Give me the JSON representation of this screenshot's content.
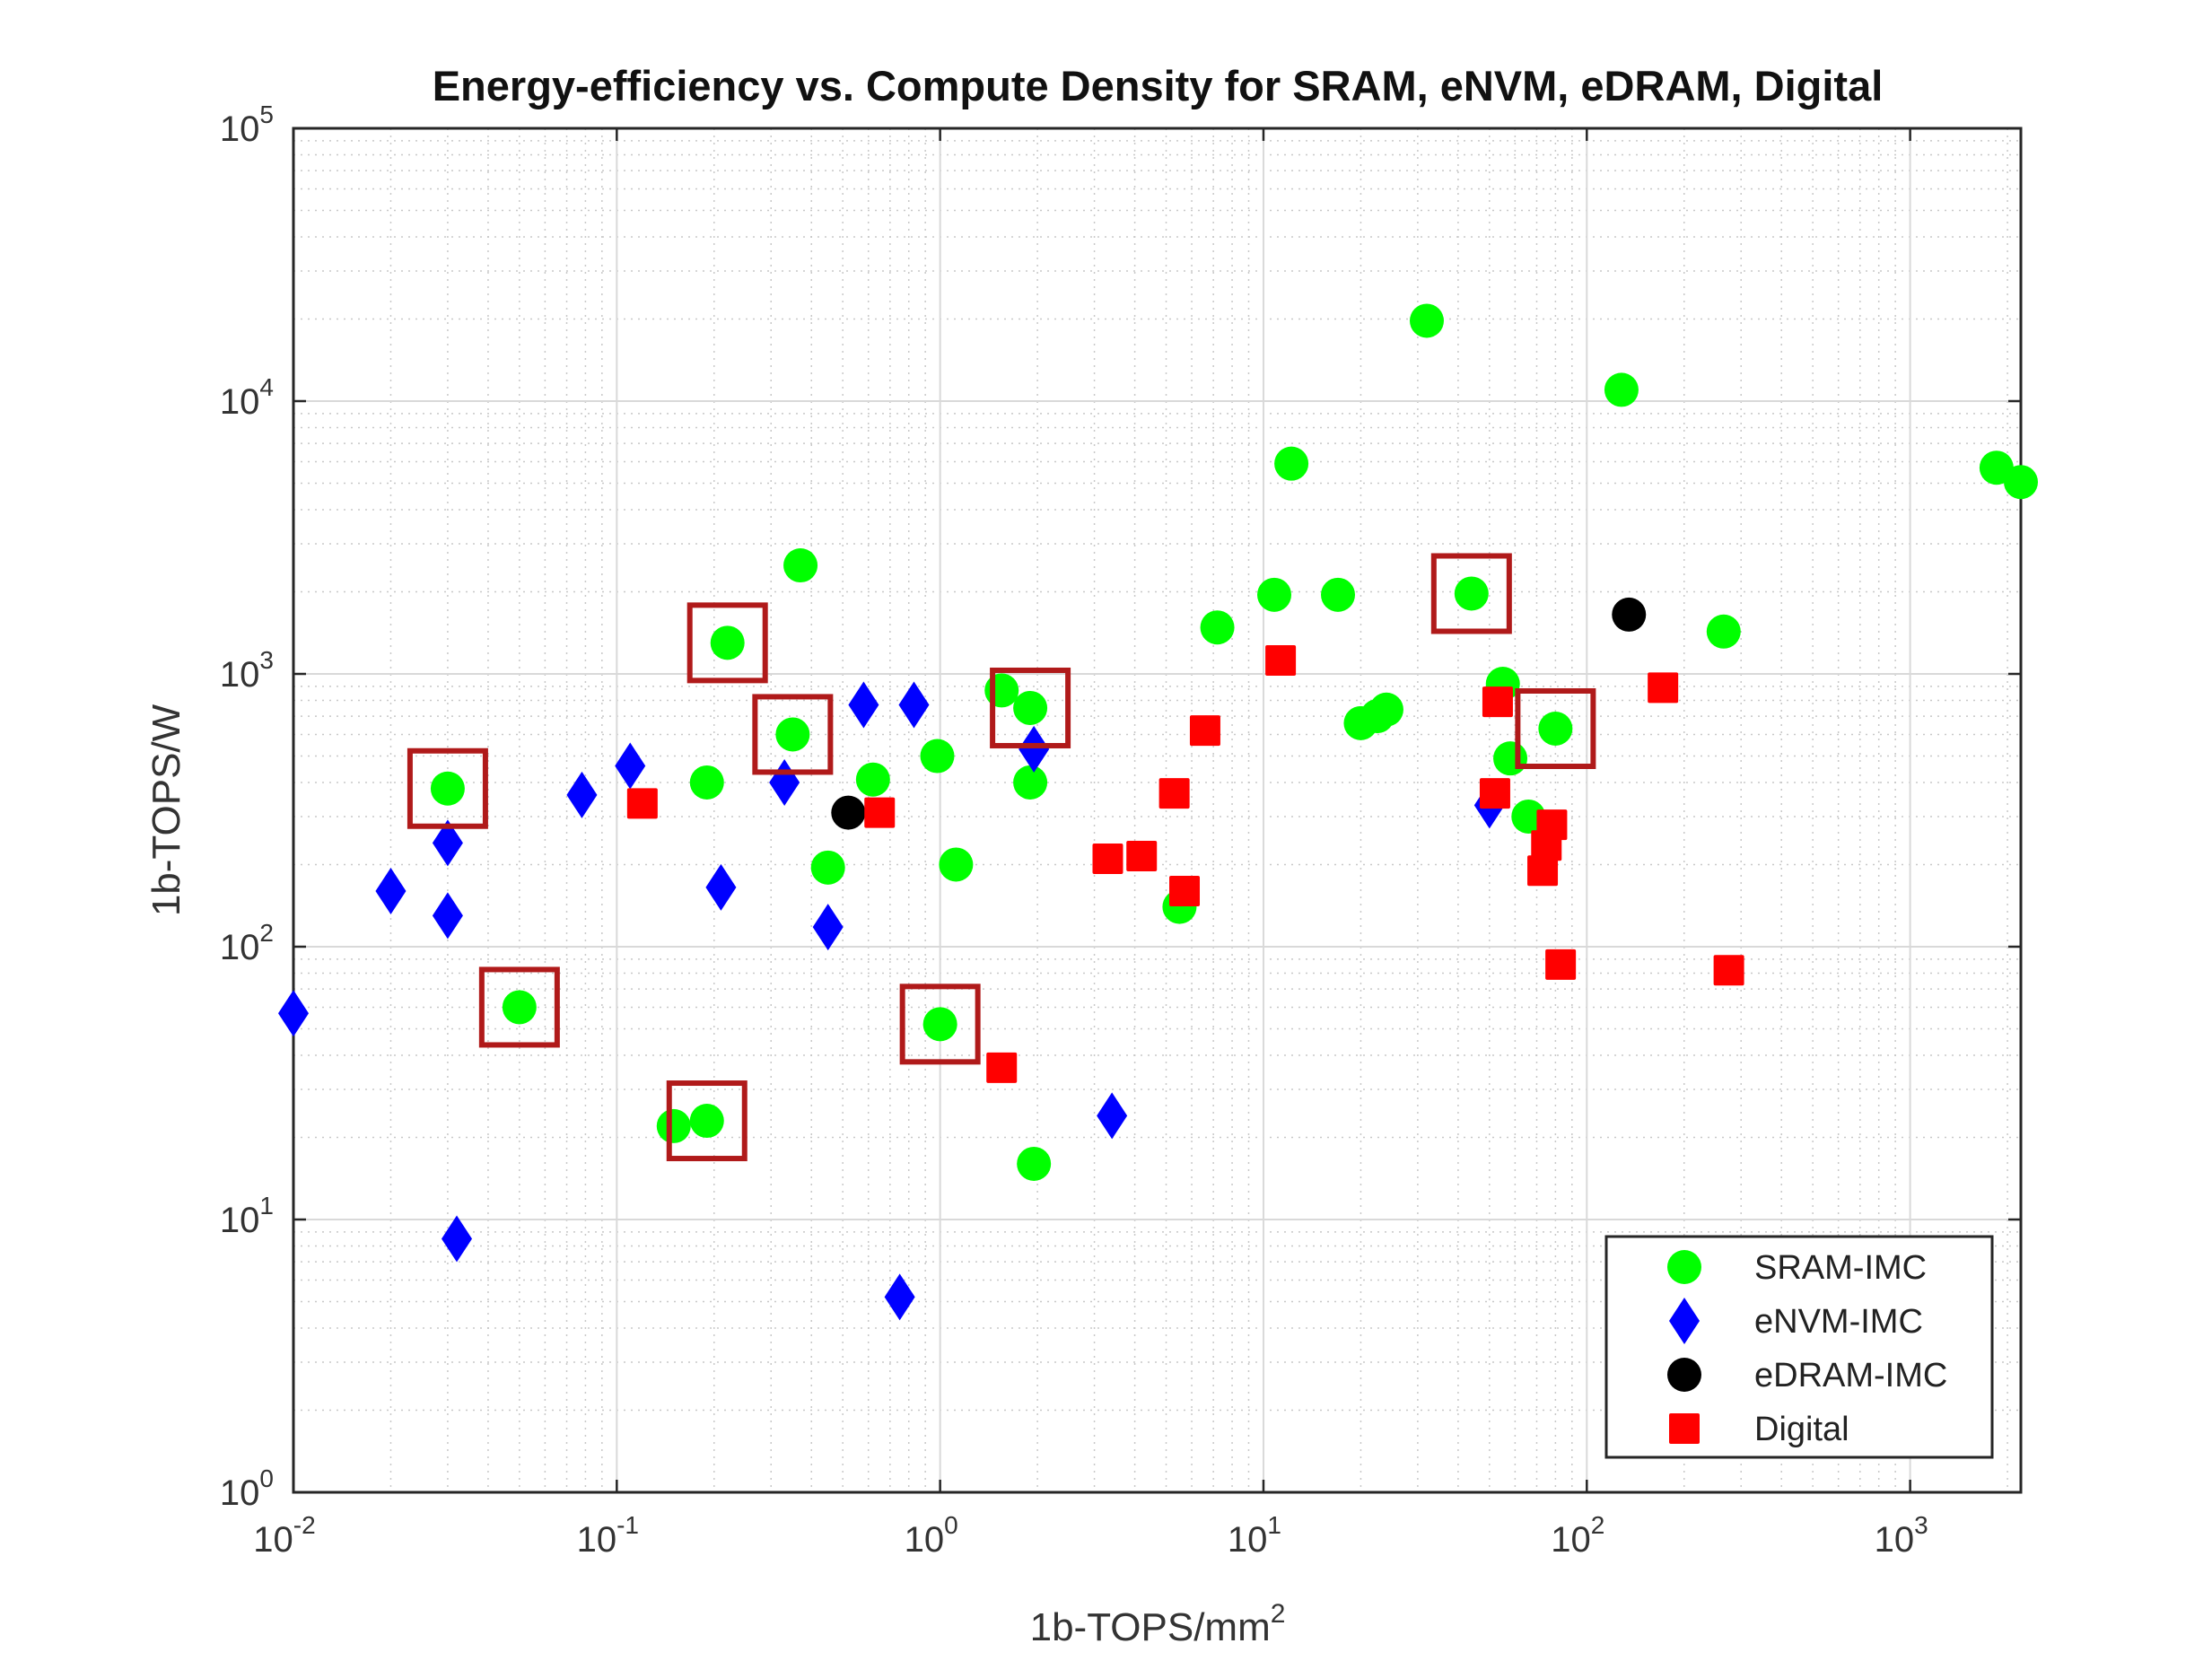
{
  "chart_data": {
    "type": "scatter",
    "title": "Energy-efficiency vs. Compute Density for SRAM, eNVM, eDRAM, Digital",
    "xlabel": "1b-TOPS/mm",
    "xlabel_sup": "2",
    "ylabel": "1b-TOPS/W",
    "x_scale": "log",
    "y_scale": "log",
    "xlim": [
      0.01,
      2200
    ],
    "ylim": [
      1,
      100000
    ],
    "grid": "on (major and minor)",
    "legend_position": "bottom-right",
    "x_ticks": [
      {
        "base": "10",
        "exp": "-2",
        "value": 0.01
      },
      {
        "base": "10",
        "exp": "-1",
        "value": 0.1
      },
      {
        "base": "10",
        "exp": "0",
        "value": 1
      },
      {
        "base": "10",
        "exp": "1",
        "value": 10
      },
      {
        "base": "10",
        "exp": "2",
        "value": 100
      },
      {
        "base": "10",
        "exp": "3",
        "value": 1000
      }
    ],
    "y_ticks": [
      {
        "base": "10",
        "exp": "0",
        "value": 1
      },
      {
        "base": "10",
        "exp": "1",
        "value": 10
      },
      {
        "base": "10",
        "exp": "2",
        "value": 100
      },
      {
        "base": "10",
        "exp": "3",
        "value": 1000
      },
      {
        "base": "10",
        "exp": "4",
        "value": 10000
      },
      {
        "base": "10",
        "exp": "5",
        "value": 100000
      }
    ],
    "series": [
      {
        "name": "SRAM-IMC",
        "marker": "circle",
        "color": "#00ff00",
        "points": [
          [
            0.03,
            380
          ],
          [
            0.05,
            60
          ],
          [
            0.15,
            22
          ],
          [
            0.19,
            23
          ],
          [
            0.19,
            400
          ],
          [
            0.22,
            1300
          ],
          [
            0.35,
            600
          ],
          [
            0.37,
            2500
          ],
          [
            0.45,
            195
          ],
          [
            0.62,
            410
          ],
          [
            0.98,
            500
          ],
          [
            1.0,
            52
          ],
          [
            1.12,
            200
          ],
          [
            1.55,
            870
          ],
          [
            1.9,
            750
          ],
          [
            1.9,
            400
          ],
          [
            1.95,
            16
          ],
          [
            5.5,
            140
          ],
          [
            7.2,
            1480
          ],
          [
            10.8,
            1950
          ],
          [
            12.2,
            5900
          ],
          [
            17,
            1950
          ],
          [
            20,
            660
          ],
          [
            22.5,
            700
          ],
          [
            24,
            740
          ],
          [
            32,
            19700
          ],
          [
            44,
            1970
          ],
          [
            55,
            920
          ],
          [
            58,
            490
          ],
          [
            66,
            300
          ],
          [
            80,
            630
          ],
          [
            128,
            11000
          ],
          [
            265,
            1430
          ],
          [
            1850,
            5700
          ],
          [
            2200,
            5050
          ]
        ]
      },
      {
        "name": "eNVM-IMC",
        "marker": "diamond",
        "color": "#0000ff",
        "points": [
          [
            0.01,
            57
          ],
          [
            0.02,
            160
          ],
          [
            0.03,
            240
          ],
          [
            0.03,
            130
          ],
          [
            0.032,
            8.5
          ],
          [
            0.078,
            360
          ],
          [
            0.11,
            460
          ],
          [
            0.21,
            165
          ],
          [
            0.33,
            400
          ],
          [
            0.45,
            118
          ],
          [
            0.58,
            770
          ],
          [
            0.75,
            5.2
          ],
          [
            0.83,
            770
          ],
          [
            1.95,
            530
          ],
          [
            3.4,
            24
          ],
          [
            50,
            330
          ]
        ]
      },
      {
        "name": "eDRAM-IMC",
        "marker": "circle",
        "color": "#000000",
        "points": [
          [
            0.52,
            310
          ],
          [
            135,
            1650
          ]
        ]
      },
      {
        "name": "Digital",
        "marker": "square",
        "color": "#ff0000",
        "points": [
          [
            0.12,
            335
          ],
          [
            0.65,
            310
          ],
          [
            1.55,
            36
          ],
          [
            3.3,
            210
          ],
          [
            4.2,
            215
          ],
          [
            5.3,
            365
          ],
          [
            5.7,
            160
          ],
          [
            6.6,
            620
          ],
          [
            11.3,
            1120
          ],
          [
            52,
            365
          ],
          [
            53,
            790
          ],
          [
            73,
            190
          ],
          [
            75,
            235
          ],
          [
            78,
            280
          ],
          [
            83,
            86
          ],
          [
            172,
            890
          ],
          [
            275,
            82
          ]
        ]
      }
    ],
    "highlighted_points": [
      [
        0.03,
        380
      ],
      [
        0.05,
        60
      ],
      [
        0.19,
        23
      ],
      [
        0.22,
        1300
      ],
      [
        0.35,
        600
      ],
      [
        1.0,
        52
      ],
      [
        1.9,
        750
      ],
      [
        44,
        1970
      ],
      [
        80,
        630
      ]
    ],
    "highlight_color": "#b01a1a"
  }
}
